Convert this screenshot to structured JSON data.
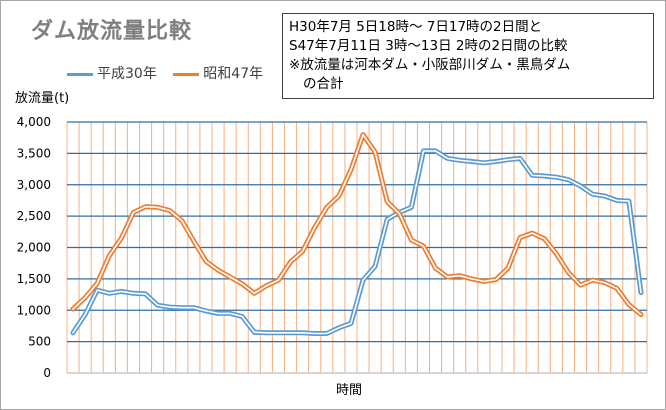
{
  "chart_data": {
    "type": "line",
    "title": "ダム放流量比較",
    "note_lines": [
      "H30年7月 5日18時～ 7日17時の2日間と",
      "S47年7月11日 3時～13日 2時の2日間の比較",
      "※放流量は河本ダム・小阪部川ダム・黒鳥ダム",
      "の合計"
    ],
    "ylabel": "放流量(t)",
    "xlabel": "時間",
    "ylim": [
      0,
      4000
    ],
    "yticks": [
      "0",
      "500",
      "1,000",
      "1,500",
      "2,000",
      "2,500",
      "3,000",
      "3,500",
      "4,000"
    ],
    "grid": true,
    "legend_position": "top-left",
    "series": [
      {
        "name": "平成30年",
        "color": "#5b9bd5",
        "values": [
          640,
          930,
          1320,
          1270,
          1300,
          1270,
          1260,
          1080,
          1050,
          1040,
          1040,
          990,
          950,
          950,
          900,
          650,
          640,
          640,
          640,
          640,
          630,
          630,
          720,
          790,
          1480,
          1700,
          2450,
          2560,
          2640,
          3540,
          3540,
          3420,
          3390,
          3370,
          3350,
          3370,
          3400,
          3420,
          3150,
          3140,
          3120,
          3080,
          2980,
          2850,
          2820,
          2750,
          2740,
          1280
        ]
      },
      {
        "name": "昭和47年",
        "color": "#ed7d31",
        "values": [
          1020,
          1200,
          1430,
          1870,
          2150,
          2560,
          2650,
          2640,
          2590,
          2430,
          2100,
          1780,
          1640,
          1530,
          1420,
          1270,
          1390,
          1480,
          1770,
          1940,
          2320,
          2640,
          2820,
          3240,
          3800,
          3520,
          2730,
          2540,
          2120,
          2020,
          1670,
          1530,
          1550,
          1500,
          1460,
          1490,
          1670,
          2160,
          2230,
          2140,
          1900,
          1600,
          1400,
          1480,
          1440,
          1350,
          1090,
          930
        ]
      }
    ]
  }
}
